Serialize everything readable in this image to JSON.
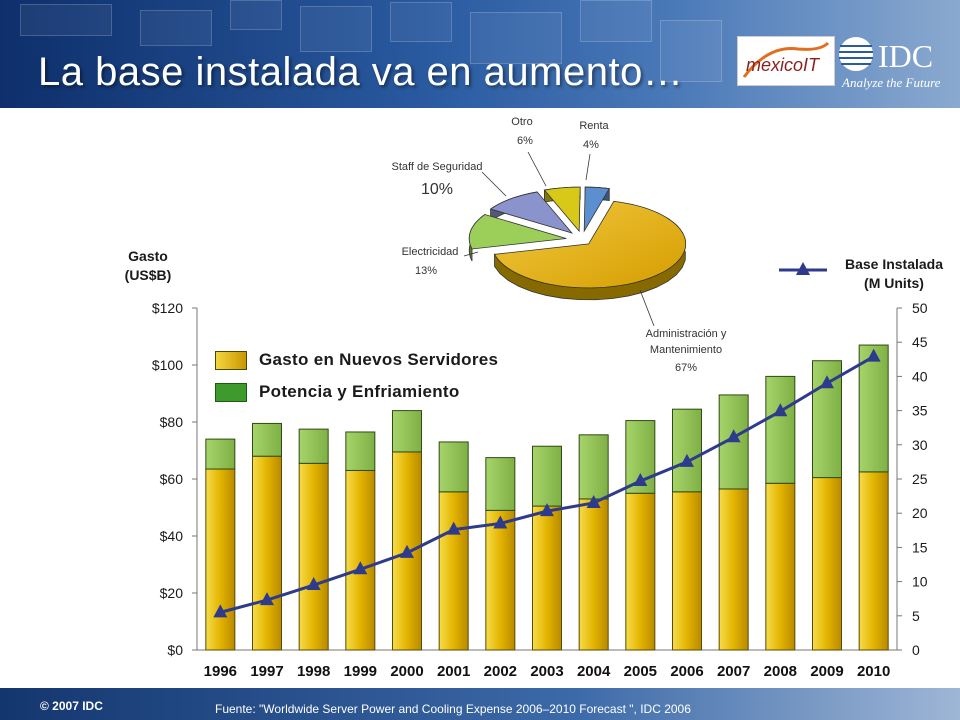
{
  "title": "La base instalada va en aumento…",
  "logos": {
    "mexico": "mexicoIT",
    "idc": "IDC",
    "idc_tagline": "Analyze the Future"
  },
  "footer": {
    "copyright": "© 2007 IDC",
    "source": "Fuente: \"Worldwide Server Power and Cooling Expense 2006–2010 Forecast \", IDC 2006"
  },
  "colors": {
    "new_servers": "#e0b000",
    "power_cooling": "#8cc04a",
    "installed_base": "#2e3a8c"
  },
  "chart_data": [
    {
      "type": "bar",
      "categories": [
        "1996",
        "1997",
        "1998",
        "1999",
        "2000",
        "2001",
        "2002",
        "2003",
        "2004",
        "2005",
        "2006",
        "2007",
        "2008",
        "2009",
        "2010"
      ],
      "left_axis": {
        "title_line1": "Gasto",
        "title_line2": "(US$B)",
        "ylim": [
          0,
          120
        ],
        "ticks": [
          "$0",
          "$20",
          "$40",
          "$60",
          "$80",
          "$100",
          "$120"
        ],
        "tick_values": [
          0,
          20,
          40,
          60,
          80,
          100,
          120
        ]
      },
      "right_axis": {
        "title_line1": "Base Instalada",
        "title_line2": "(M Units)",
        "ylim": [
          0,
          50
        ],
        "ticks": [
          "0",
          "5",
          "10",
          "15",
          "20",
          "25",
          "30",
          "35",
          "40",
          "45",
          "50"
        ],
        "tick_values": [
          0,
          5,
          10,
          15,
          20,
          25,
          30,
          35,
          40,
          45,
          50
        ]
      },
      "series": [
        {
          "name": "Gasto en Nuevos Servidores",
          "type": "bar",
          "axis": "left",
          "stack": "spend",
          "values": [
            63.5,
            68,
            65.5,
            63,
            69.5,
            55.5,
            49,
            50.5,
            53,
            55,
            55.5,
            56.5,
            58.5,
            60.5,
            62.5
          ]
        },
        {
          "name": "Potencia y Enfriamiento",
          "type": "bar",
          "axis": "left",
          "stack": "spend",
          "values": [
            10.5,
            11.5,
            12,
            13.5,
            14.5,
            17.5,
            18.5,
            21,
            22.5,
            25.5,
            29,
            33,
            37.5,
            41,
            44.5
          ]
        },
        {
          "name": "Base Instalada",
          "type": "line",
          "axis": "right",
          "values": [
            5.5,
            7.3,
            9.5,
            11.8,
            14.2,
            17.6,
            18.5,
            20.3,
            21.5,
            24.7,
            27.5,
            31.1,
            34.9,
            39,
            42.9
          ]
        }
      ]
    },
    {
      "type": "pie",
      "slices": [
        {
          "label_line1": "Administración y",
          "label_line2": "Mantenimiento",
          "pct_label": "67%",
          "value": 67,
          "color": "#e0b000"
        },
        {
          "label_line1": "Electricidad",
          "label_line2": "",
          "pct_label": "13%",
          "value": 13,
          "color": "#9ccf5a"
        },
        {
          "label_line1": "Staff de Seguridad",
          "label_line2": "",
          "pct_label": "10%",
          "value": 10,
          "color": "#8a93cc"
        },
        {
          "label_line1": "Otro",
          "label_line2": "",
          "pct_label": "6%",
          "value": 6,
          "color": "#d8c818"
        },
        {
          "label_line1": "Renta",
          "label_line2": "",
          "pct_label": "4%",
          "value": 4,
          "color": "#5b8fd0"
        }
      ]
    }
  ]
}
